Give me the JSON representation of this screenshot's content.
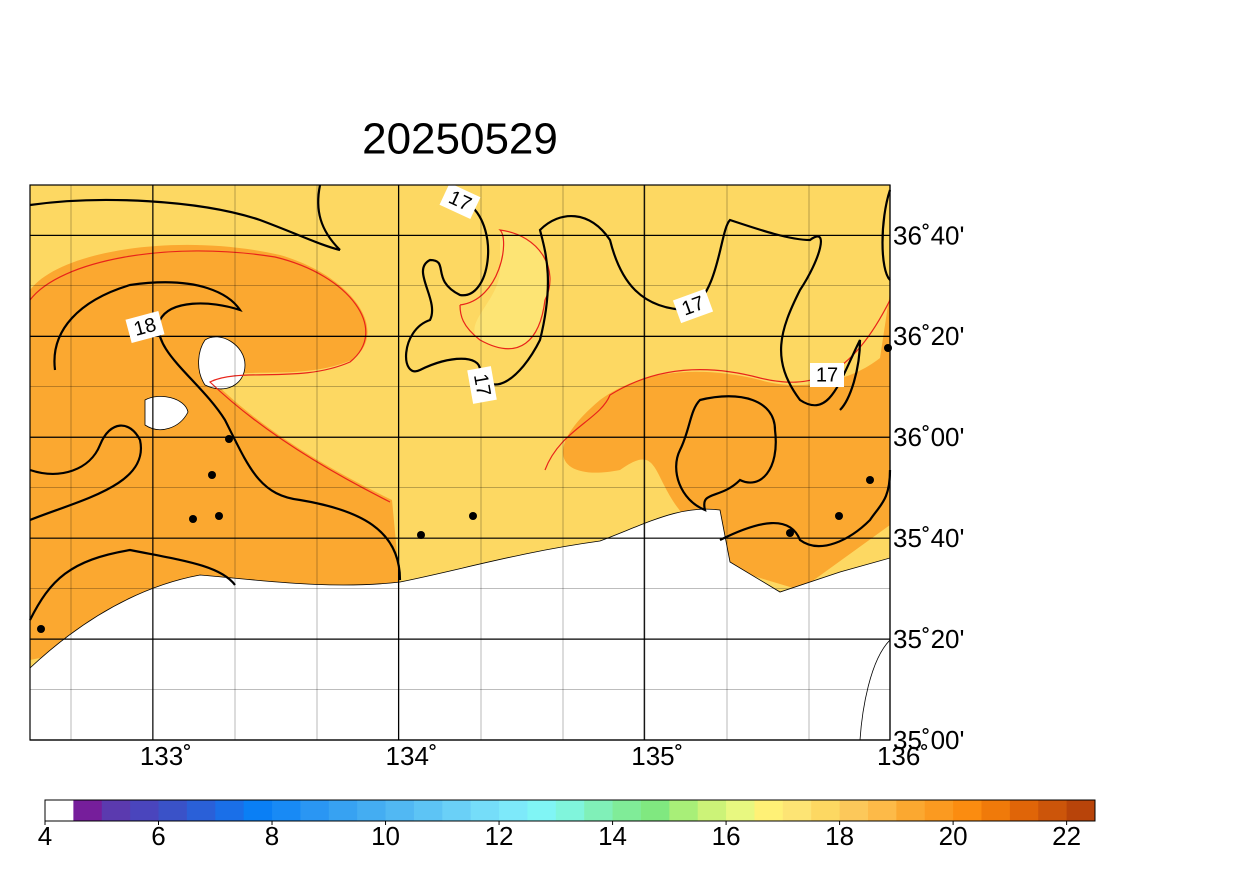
{
  "title": "20250529",
  "map": {
    "xlim": [
      132.5,
      136
    ],
    "ylim": [
      35,
      36.8333
    ],
    "lon_ticks": [
      {
        "value": 133,
        "label": "133˚"
      },
      {
        "value": 134,
        "label": "134˚"
      },
      {
        "value": 135,
        "label": "135˚"
      },
      {
        "value": 136,
        "label": "136˚"
      }
    ],
    "lat_ticks": [
      {
        "value": 35,
        "label": "35˚00'"
      },
      {
        "value": 35.3333,
        "label": "35˚20'"
      },
      {
        "value": 35.6667,
        "label": "35˚40'"
      },
      {
        "value": 36,
        "label": "36˚00'"
      },
      {
        "value": 36.3333,
        "label": "36˚20'"
      },
      {
        "value": 36.6667,
        "label": "36˚40'"
      }
    ],
    "contour_labels": [
      "17",
      "17",
      "17",
      "17",
      "18"
    ]
  },
  "colorbar": {
    "range": [
      4,
      22.5
    ],
    "ticks": [
      4,
      6,
      8,
      10,
      12,
      14,
      16,
      18,
      20,
      22
    ],
    "colors": [
      "#ffffff",
      "#761e9b",
      "#5b3aaf",
      "#4a45bd",
      "#3a52c8",
      "#2a60d8",
      "#1a6fe8",
      "#0a7ff5",
      "#188af5",
      "#2a96f3",
      "#37a2f2",
      "#44adf2",
      "#51b8f3",
      "#5dc4f5",
      "#6ad0f7",
      "#75ddf9",
      "#7de9fa",
      "#80f5f5",
      "#80f5dc",
      "#80f0b8",
      "#80ec98",
      "#80e880",
      "#a8ef78",
      "#ccf378",
      "#e8f880",
      "#fff176",
      "#fde474",
      "#fdd862",
      "#fcc85a",
      "#fdba48",
      "#fba830",
      "#fb9a20",
      "#fb8c10",
      "#f07a0a",
      "#e06508",
      "#cc550a",
      "#b8440a"
    ]
  }
}
